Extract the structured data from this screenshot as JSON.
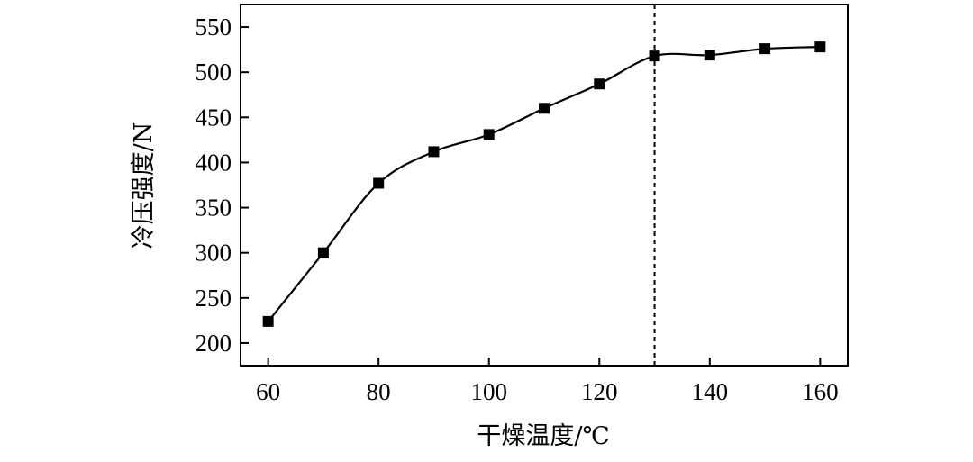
{
  "chart_data": {
    "type": "line",
    "xlabel": "干燥温度/℃",
    "ylabel": "冷压强度/N",
    "xlim": [
      55,
      165
    ],
    "ylim": [
      175,
      575
    ],
    "xticks": [
      60,
      80,
      100,
      120,
      140,
      160
    ],
    "yticks": [
      200,
      250,
      300,
      350,
      400,
      450,
      500,
      550
    ],
    "reference_line_x": 130,
    "series": [
      {
        "x": [
          60,
          70,
          80,
          90,
          100,
          110,
          120,
          130,
          140,
          150,
          160
        ],
        "values": [
          224,
          300,
          377,
          412,
          431,
          460,
          487,
          518,
          519,
          526,
          528
        ]
      }
    ],
    "grid": false,
    "legend": "none",
    "colors": {
      "line": "#000000",
      "marker": "#000000",
      "axis": "#000000"
    }
  }
}
